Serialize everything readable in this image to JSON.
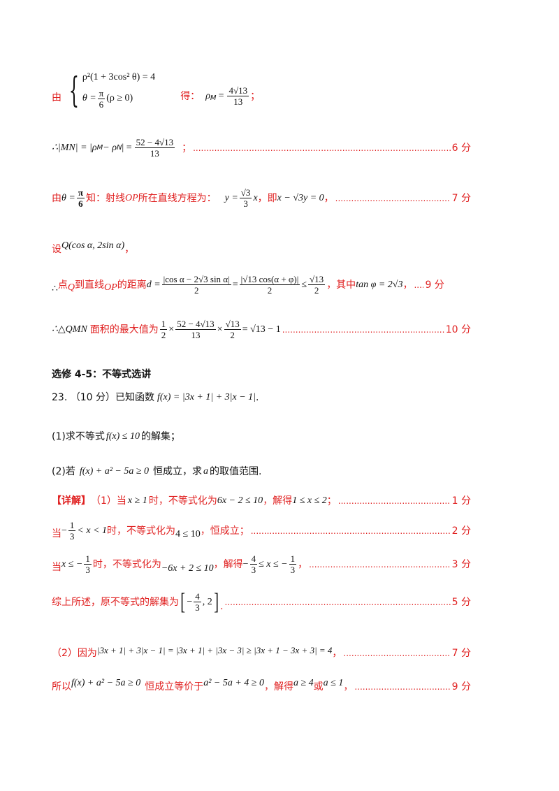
{
  "l1": {
    "prefix": "由",
    "eq1": "ρ²(1 + 3cos² θ) = 4",
    "eq2_lhs": "θ =",
    "eq2_frac_num": "π",
    "eq2_frac_den": "6",
    "eq2_tail": "(ρ ≥ 0)",
    "de": "得：",
    "rho": "ρ",
    "rho_sub": "M",
    "eqsign": "=",
    "res_num": "4√13",
    "res_den": "13",
    "semi": "；"
  },
  "l2": {
    "lhs": "∴|MN| = |ρ",
    "sub_m": "M",
    "minus": " − ρ",
    "sub_n": "N",
    "close": "| =",
    "num": "52 − 4√13",
    "den": "13",
    "semi": "；",
    "score": "6 分"
  },
  "l3": {
    "you": "由",
    "theta": "θ =",
    "pi": "π",
    "six": "6",
    "text1": "知：射线",
    "op": "OP",
    "text2": "所在直线方程为：",
    "y": "y =",
    "num": "√3",
    "den": "3",
    "x": "x",
    "text3": "，即",
    "eq": "x − √3y = 0",
    "comma": "，",
    "score": "7 分"
  },
  "l4": {
    "she": "设",
    "q": "Q(cos α, 2sin α)",
    "comma": "，"
  },
  "l5": {
    "therefore": "∴",
    "t1": "点",
    "q": "Q",
    "t2": "到直线",
    "op": "OP",
    "t3": "的距离",
    "d": "d =",
    "f1_num": "|cos α − 2√3 sin α|",
    "f1_den": "2",
    "eq": "=",
    "f2_num": "|√13 cos(α + φ)|",
    "f2_den": "2",
    "le": "≤",
    "f3_num": "√13",
    "f3_den": "2",
    "t4": "，其中",
    "tan": "tan φ = 2√3",
    "t5": "，",
    "score": "9 分"
  },
  "l6": {
    "lhs": "∴△QMN",
    "t1": "面积的最大值为",
    "a_num": "1",
    "a_den": "2",
    "times": "×",
    "b_num": "52 − 4√13",
    "b_den": "13",
    "times2": "×",
    "c_num": "√13",
    "c_den": "2",
    "res": "= √13 − 1",
    "score": "10 分"
  },
  "section": "选修 4-5：不等式选讲",
  "q23": {
    "head": "23. （10 分）已知函数",
    "fx": "f(x) = |3x + 1| + 3|x − 1|",
    "dot": "."
  },
  "q1": {
    "text": "(1)求不等式",
    "ineq": "f(x) ≤ 10",
    "tail": "的解集；"
  },
  "q2": {
    "text": "(2)若",
    "ineq": "f(x) + a² − 5a ≥ 0",
    "t1": "恒成立，求",
    "a": "a",
    "t2": "的取值范围."
  },
  "s1": {
    "tag": "【详解】",
    "t1": "（1）当",
    "cond": "x ≥ 1",
    "t2": "时，不等式化为",
    "ineq": "6x − 2 ≤ 10",
    "t3": "，解得",
    "res": "1 ≤ x ≤ 2",
    "t4": "；",
    "score": "1 分"
  },
  "s2": {
    "dang": "当",
    "minus": "−",
    "num": "1",
    "den": "3",
    "cond": "< x < 1",
    "t1": "时，不等式化为",
    "ineq": "4 ≤ 10",
    "t2": "，恒成立；",
    "score": "2 分"
  },
  "s3": {
    "dang": "当",
    "cond": "x ≤ −",
    "num": "1",
    "den": "3",
    "t1": "时，不等式化为",
    "ineq": "−6x + 2 ≤ 10",
    "t2": "，解得",
    "minus": "−",
    "a_num": "4",
    "a_den": "3",
    "mid": "≤ x ≤ −",
    "b_num": "1",
    "b_den": "3",
    "t3": "，",
    "score": "3 分"
  },
  "s4": {
    "t1": "综上所述，原不等式的解集为",
    "lb": "[",
    "minus": "−",
    "num": "4",
    "den": "3",
    "tail": ", 2",
    "rb": "]",
    "dot": ".",
    "score": "5 分"
  },
  "s5": {
    "t1": "（2）因为",
    "expr": "|3x + 1| + 3|x − 1| = |3x + 1| + |3x − 3| ≥ |3x + 1 − 3x + 3| = 4",
    "comma": "，",
    "score": "7 分"
  },
  "s6": {
    "t1": "所以",
    "ineq": "f(x) + a² − 5a ≥ 0",
    "t2": "恒成立等价于",
    "eq": "a² − 5a + 4 ≥ 0",
    "t3": "，解得",
    "r1": "a ≥ 4",
    "or": "或",
    "r2": "a ≤ 1",
    "t4": "，",
    "score": "9 分"
  }
}
